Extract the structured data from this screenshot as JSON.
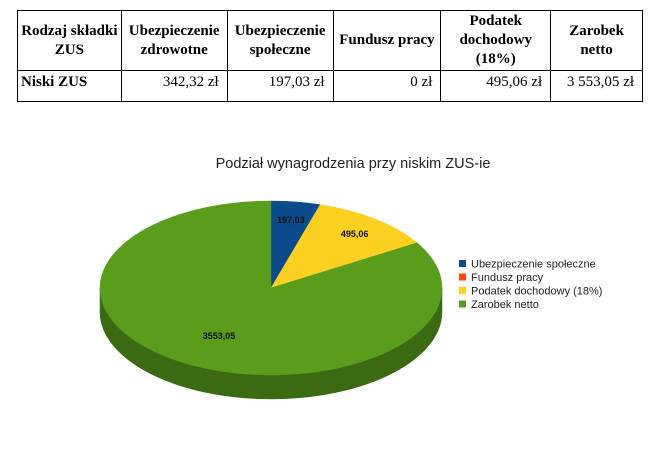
{
  "table": {
    "headers": [
      "Rodzaj składki ZUS",
      "Ubezpieczenie zdrowotne",
      "Ubezpieczenie społeczne",
      "Fundusz pracy",
      "Podatek dochodowy (18%)",
      "Zarobek netto"
    ],
    "row": {
      "label": "Niski ZUS",
      "cells": [
        "342,32 zł",
        "197,03 zł",
        "0 zł",
        "495,06 zł",
        "3 553,05 zł"
      ]
    }
  },
  "chart_data": {
    "type": "pie",
    "title": "Podział wynagrodzenia przy niskim ZUS-ie",
    "categories": [
      "Ubezpieczenie społeczne",
      "Fundusz pracy",
      "Podatek dochodowy (18%)",
      "Zarobek netto"
    ],
    "values": [
      197.03,
      0,
      495.06,
      3553.05
    ],
    "data_labels": [
      "197,03",
      "",
      "495,06",
      "3553,05"
    ],
    "colors": [
      "#0b4a8b",
      "#ff4a12",
      "#fcd020",
      "#5a9c1c"
    ],
    "side_colors": [
      "#062c55",
      "#992c0a",
      "#a88510",
      "#3a6a11"
    ],
    "legend_position": "right",
    "three_d": true
  }
}
